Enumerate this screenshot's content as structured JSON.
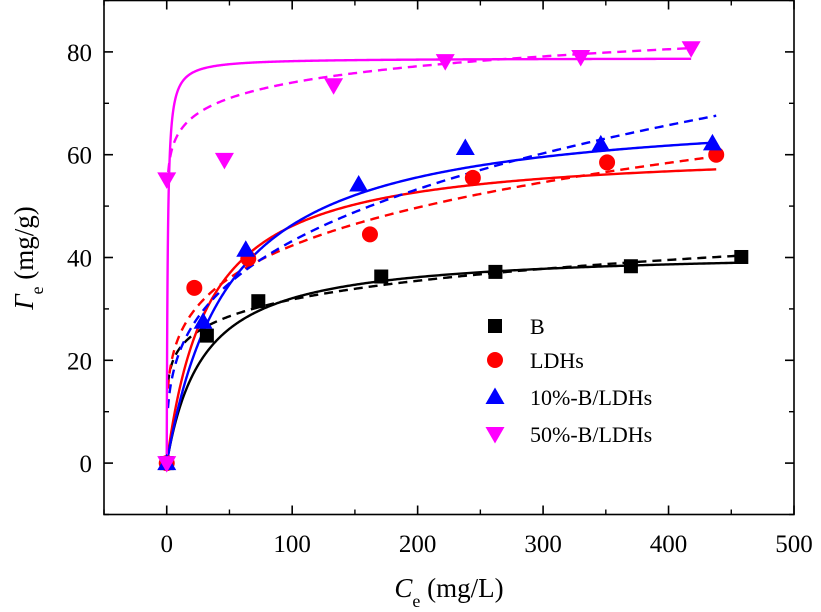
{
  "chart_data": {
    "type": "scatter",
    "title": "",
    "xlabel": {
      "symbol": "C",
      "subscript": "e",
      "unit": " (mg/L)"
    },
    "ylabel": {
      "symbol": "Γ",
      "subscript": "e",
      "unit": " (mg/g)"
    },
    "xlim": [
      -50,
      500
    ],
    "ylim": [
      -10,
      90
    ],
    "xticks": [
      0,
      100,
      200,
      300,
      400,
      500
    ],
    "yticks": [
      0,
      20,
      40,
      60,
      80
    ],
    "grid": false,
    "legend_position": "center-right",
    "series": [
      {
        "name": "B",
        "color": "#000000",
        "marker": "square",
        "points": [
          [
            0,
            0
          ],
          [
            32,
            24.8
          ],
          [
            73,
            31.5
          ],
          [
            171,
            36.3
          ],
          [
            262,
            37.2
          ],
          [
            370,
            38.3
          ],
          [
            458,
            40.1
          ]
        ],
        "fit_solid": {
          "model": "langmuir",
          "qmax": 41.5,
          "K": 0.034,
          "xmax": 458
        },
        "fit_dashed": {
          "model": "freundlich",
          "K": 15.5,
          "n": 6.4,
          "xmin": 1,
          "xmax": 458
        }
      },
      {
        "name": "LDHs",
        "color": "#ff0000",
        "marker": "circle",
        "points": [
          [
            0,
            0
          ],
          [
            22,
            34.1
          ],
          [
            65,
            39.8
          ],
          [
            162,
            44.5
          ],
          [
            244,
            55.5
          ],
          [
            351,
            58.5
          ],
          [
            438,
            60.0
          ]
        ],
        "fit_solid": {
          "model": "langmuir",
          "qmax": 61.5,
          "K": 0.03,
          "xmax": 438
        },
        "fit_dashed": {
          "model": "freundlich",
          "K": 14.5,
          "n": 4.3,
          "xmin": 1,
          "xmax": 438
        }
      },
      {
        "name": "10%-B/LDHs",
        "color": "#0000ff",
        "marker": "triangle-up",
        "points": [
          [
            0,
            0
          ],
          [
            29,
            27.5
          ],
          [
            63,
            41.5
          ],
          [
            153,
            54.2
          ],
          [
            238,
            61.3
          ],
          [
            346,
            62.0
          ],
          [
            435,
            62.2
          ]
        ],
        "fit_solid": {
          "model": "langmuir",
          "qmax": 69.5,
          "K": 0.02,
          "xmax": 438
        },
        "fit_dashed": {
          "model": "freundlich",
          "K": 10.7,
          "n": 3.3,
          "xmin": 1,
          "xmax": 438
        }
      },
      {
        "name": "50%-B/LDHs",
        "color": "#ff00ff",
        "marker": "triangle-down",
        "points": [
          [
            0,
            0
          ],
          [
            0,
            55.2
          ],
          [
            46,
            59.0
          ],
          [
            133,
            73.5
          ],
          [
            222,
            78.2
          ],
          [
            330,
            79.0
          ],
          [
            418,
            80.7
          ]
        ],
        "fit_solid": {
          "model": "langmuir",
          "qmax": 78.8,
          "K": 1.3,
          "xmax": 418
        },
        "fit_dashed": {
          "model": "freundlich",
          "K": 56.0,
          "n": 16.5,
          "xmin": 0.5,
          "xmax": 418
        }
      }
    ]
  }
}
